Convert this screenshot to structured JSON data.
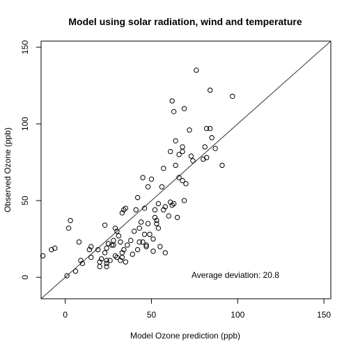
{
  "chart_data": {
    "type": "scatter",
    "title": "Model using solar radiation, wind and temperature",
    "xlabel": "Model Ozone prediction (ppb)",
    "ylabel": "Observed Ozone (ppb)",
    "xlim": [
      -14,
      154
    ],
    "ylim": [
      -14,
      154
    ],
    "xticks": [
      0,
      50,
      100,
      150
    ],
    "yticks": [
      0,
      50,
      100,
      150
    ],
    "grid": false,
    "reference_line": "y = x",
    "annotation": "Average deviation: 20.8",
    "series": [
      {
        "points": [
          [
            -13,
            14
          ],
          [
            -8,
            18
          ],
          [
            -6,
            19
          ],
          [
            1,
            1
          ],
          [
            2,
            32
          ],
          [
            3,
            37
          ],
          [
            6,
            4
          ],
          [
            8,
            23
          ],
          [
            9,
            11
          ],
          [
            10,
            9
          ],
          [
            14,
            18
          ],
          [
            15,
            13
          ],
          [
            15,
            20
          ],
          [
            19,
            18
          ],
          [
            20,
            7
          ],
          [
            20,
            10
          ],
          [
            21,
            12
          ],
          [
            23,
            16
          ],
          [
            23,
            34
          ],
          [
            24,
            7
          ],
          [
            24,
            9
          ],
          [
            24,
            11
          ],
          [
            24,
            19
          ],
          [
            25,
            22
          ],
          [
            26,
            11
          ],
          [
            27,
            21
          ],
          [
            28,
            24
          ],
          [
            28,
            21
          ],
          [
            29,
            14
          ],
          [
            29,
            32
          ],
          [
            30,
            13
          ],
          [
            30,
            30
          ],
          [
            31,
            27
          ],
          [
            32,
            23
          ],
          [
            32,
            11
          ],
          [
            33,
            13
          ],
          [
            33,
            16
          ],
          [
            34,
            18
          ],
          [
            33,
            42
          ],
          [
            34,
            44
          ],
          [
            35,
            45
          ],
          [
            35,
            10
          ],
          [
            36,
            21
          ],
          [
            38,
            24
          ],
          [
            39,
            15
          ],
          [
            40,
            30
          ],
          [
            41,
            44
          ],
          [
            42,
            18
          ],
          [
            42,
            52
          ],
          [
            43,
            23
          ],
          [
            43,
            32
          ],
          [
            44,
            36
          ],
          [
            45,
            65
          ],
          [
            45,
            23
          ],
          [
            46,
            28
          ],
          [
            46,
            45
          ],
          [
            47,
            20
          ],
          [
            47,
            21
          ],
          [
            48,
            35
          ],
          [
            48,
            59
          ],
          [
            49,
            28
          ],
          [
            50,
            64
          ],
          [
            51,
            17
          ],
          [
            51,
            25
          ],
          [
            52,
            39
          ],
          [
            52,
            44
          ],
          [
            53,
            35
          ],
          [
            53,
            37
          ],
          [
            54,
            48
          ],
          [
            54,
            32
          ],
          [
            55,
            20
          ],
          [
            56,
            59
          ],
          [
            57,
            71
          ],
          [
            57,
            44
          ],
          [
            58,
            16
          ],
          [
            58,
            46
          ],
          [
            60,
            40
          ],
          [
            61,
            49
          ],
          [
            61,
            82
          ],
          [
            62,
            47
          ],
          [
            62,
            115
          ],
          [
            63,
            108
          ],
          [
            63,
            48
          ],
          [
            64,
            73
          ],
          [
            64,
            89
          ],
          [
            65,
            39
          ],
          [
            66,
            65
          ],
          [
            66,
            80
          ],
          [
            68,
            63
          ],
          [
            68,
            85
          ],
          [
            68,
            82
          ],
          [
            69,
            50
          ],
          [
            69,
            110
          ],
          [
            70,
            61
          ],
          [
            72,
            96
          ],
          [
            73,
            79
          ],
          [
            74,
            76
          ],
          [
            76,
            135
          ],
          [
            80,
            77
          ],
          [
            81,
            85
          ],
          [
            82,
            97
          ],
          [
            82,
            78
          ],
          [
            84,
            122
          ],
          [
            84,
            97
          ],
          [
            85,
            91
          ],
          [
            87,
            84
          ],
          [
            91,
            73
          ],
          [
            97,
            118
          ]
        ]
      }
    ]
  }
}
